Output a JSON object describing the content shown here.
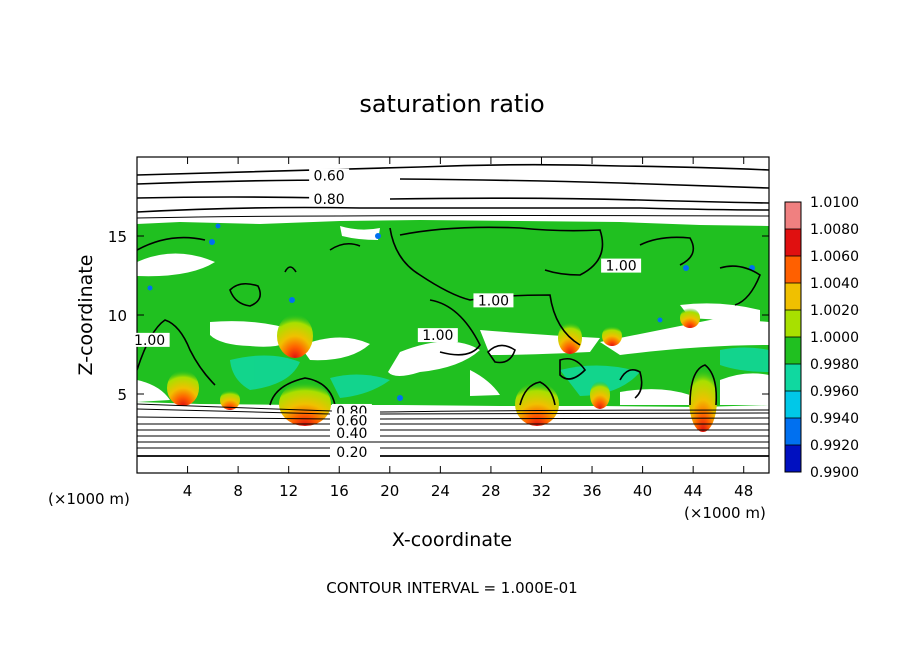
{
  "chart_data": {
    "type": "heatmap",
    "title": "saturation ratio",
    "xlabel": "X-coordinate",
    "ylabel": "Z-coordinate",
    "x_unit": "(×1000 m)",
    "y_unit": "(×1000 m)",
    "xlim": [
      0,
      50
    ],
    "ylim": [
      0,
      20
    ],
    "x_ticks": [
      4,
      8,
      12,
      16,
      20,
      24,
      28,
      32,
      36,
      40,
      44,
      48
    ],
    "y_ticks": [
      5,
      10,
      15
    ],
    "footer": "CONTOUR INTERVAL = 1.000E-01",
    "colorbar": {
      "levels": [
        "1.0100",
        "1.0080",
        "1.0060",
        "1.0040",
        "1.0020",
        "1.0000",
        "0.9980",
        "0.9960",
        "0.9940",
        "0.9920",
        "0.9900"
      ],
      "colors": [
        "#f08080",
        "#e01010",
        "#ff6000",
        "#f0c000",
        "#a8e000",
        "#20c020",
        "#10d8a0",
        "#00c8e8",
        "#0070f0",
        "#0010c0",
        "#500090"
      ]
    },
    "contour_labels": [
      {
        "text": "0.60",
        "x": 15.2,
        "z": 18.7
      },
      {
        "text": "0.80",
        "x": 15.2,
        "z": 17.2
      },
      {
        "text": "1.00",
        "x": 1.0,
        "z": 8.3
      },
      {
        "text": "1.00",
        "x": 23.8,
        "z": 8.6
      },
      {
        "text": "1.00",
        "x": 28.2,
        "z": 10.8
      },
      {
        "text": "1.00",
        "x": 38.3,
        "z": 13.0
      },
      {
        "text": "0.80",
        "x": 17.0,
        "z": 3.8
      },
      {
        "text": "0.60",
        "x": 17.0,
        "z": 3.2
      },
      {
        "text": "0.40",
        "x": 17.0,
        "z": 2.4
      },
      {
        "text": "0.20",
        "x": 17.0,
        "z": 1.2
      }
    ]
  }
}
